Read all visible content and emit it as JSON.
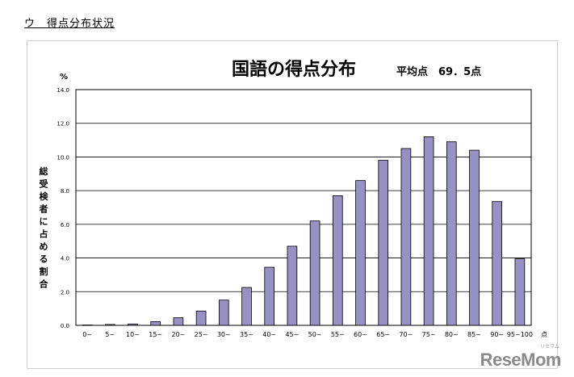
{
  "section_heading": "ウ　得点分布状況",
  "chart_data": {
    "type": "bar",
    "title": "国語の得点分布",
    "subtitle": "平均点　69．5点",
    "y_unit": "%",
    "ylabel": "総受検者に占める割合",
    "x_unit": "点",
    "ylim": [
      0,
      14
    ],
    "yticks": [
      "0.0",
      "2.0",
      "4.0",
      "6.0",
      "8.0",
      "10.0",
      "12.0",
      "14.0"
    ],
    "grid": true,
    "categories": [
      "0~",
      "5~",
      "10~",
      "15~",
      "20~",
      "25~",
      "30~",
      "35~",
      "40~",
      "45~",
      "50~",
      "55~",
      "60~",
      "65~",
      "70~",
      "75~",
      "80~",
      "85~",
      "90~",
      "95~100"
    ],
    "values": [
      0.02,
      0.05,
      0.08,
      0.22,
      0.45,
      0.85,
      1.5,
      2.25,
      3.45,
      4.7,
      6.2,
      7.7,
      8.6,
      9.8,
      10.5,
      11.2,
      10.9,
      10.4,
      7.35,
      3.95
    ],
    "bar_color": "#9891c3",
    "bar_border": "#000000"
  },
  "logo": {
    "text": "ReseMom",
    "sub": "リセマム"
  }
}
